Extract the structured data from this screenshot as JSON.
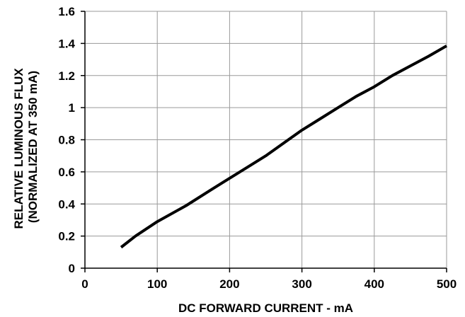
{
  "chart_data": {
    "type": "line",
    "title": "",
    "xlabel": "DC FORWARD CURRENT - mA",
    "ylabel_lines": [
      "RELATIVE LUMINOUS FLUX",
      "(NORMALIZED AT 350 mA)"
    ],
    "xlim": [
      0,
      500
    ],
    "ylim": [
      0,
      1.6
    ],
    "x_ticks": [
      0,
      100,
      200,
      300,
      400,
      500
    ],
    "x_tick_labels": [
      "0",
      "100",
      "200",
      "300",
      "400",
      "500"
    ],
    "y_ticks": [
      0,
      0.2,
      0.4,
      0.6,
      0.8,
      1,
      1.2,
      1.4,
      1.6
    ],
    "y_tick_labels": [
      "0",
      "0.2",
      "0.4",
      "0.6",
      "0.8",
      "1",
      "1.2",
      "1.4",
      "1.6"
    ],
    "grid": true,
    "series": [
      {
        "x": [
          50,
          70,
          100,
          140,
          175,
          200,
          225,
          250,
          275,
          300,
          325,
          350,
          375,
          400,
          425,
          450,
          475,
          500
        ],
        "y": [
          0.13,
          0.2,
          0.29,
          0.39,
          0.49,
          0.56,
          0.63,
          0.7,
          0.78,
          0.86,
          0.93,
          1.0,
          1.07,
          1.13,
          1.2,
          1.26,
          1.32,
          1.385
        ]
      }
    ],
    "colors": {
      "line": "#000000",
      "grid": "#9a9a9a",
      "axis": "#000000"
    }
  }
}
